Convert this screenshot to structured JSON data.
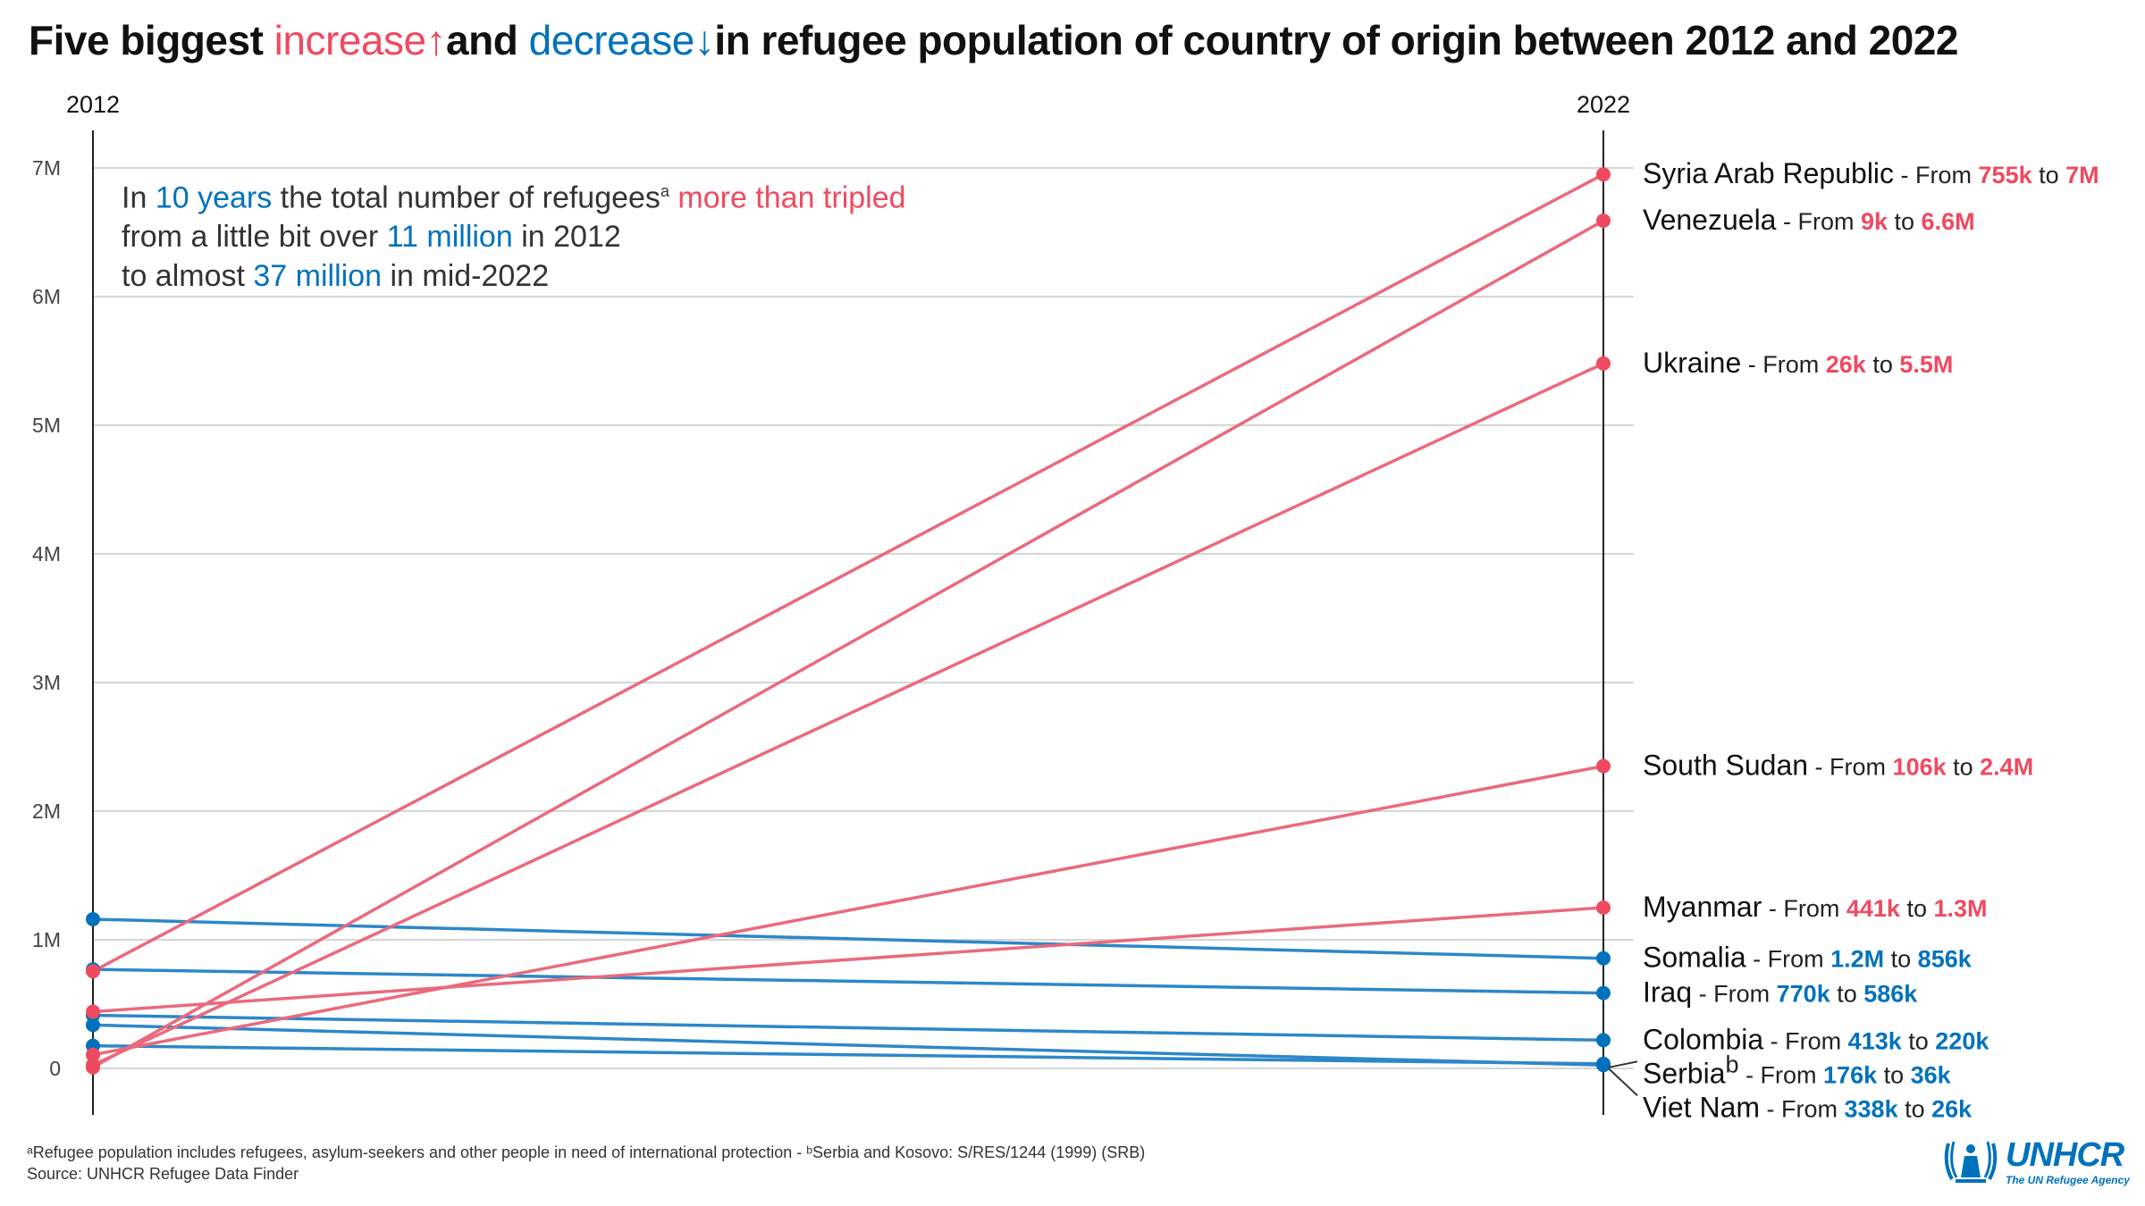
{
  "title": {
    "prefix": "Five biggest ",
    "increase": "increase",
    "increase_arrow": "↑",
    "middle": "and ",
    "decrease": "decrease",
    "decrease_arrow": "↓",
    "suffix": "in refugee population of country of origin between 2012 and 2022"
  },
  "annotation": {
    "l1_a": "In ",
    "l1_b": "10 years",
    "l1_c": " the total number of refugees",
    "l1_sup": "a",
    "l1_d": " more than tripled",
    "l2_a": "from a little bit over ",
    "l2_b": "11 million",
    "l2_c": " in 2012",
    "l3_a": "to almost ",
    "l3_b": "37 million",
    "l3_c": " in mid-2022"
  },
  "footnote": {
    "line1": "ᵃRefugee population includes refugees, asylum-seekers and other people in need of international protection - ᵇSerbia and Kosovo: S/RES/1244 (1999) (SRB)",
    "line2": "Source: UNHCR Refugee Data Finder"
  },
  "logo": {
    "word": "UNHCR",
    "tagline": "The UN Refugee Agency"
  },
  "colors": {
    "increase": "#ef4a60",
    "decrease": "#0072bc",
    "increase_line": "#ea6a7c",
    "decrease_line": "#2e87c8"
  },
  "chart_data": {
    "type": "line",
    "x": [
      "2012",
      "2022"
    ],
    "ylim": [
      0,
      7000000
    ],
    "yticks": [
      0,
      1000000,
      2000000,
      3000000,
      4000000,
      5000000,
      6000000,
      7000000
    ],
    "ytick_labels": [
      "0",
      "1M",
      "2M",
      "3M",
      "4M",
      "5M",
      "6M",
      "7M"
    ],
    "grid": true,
    "from_word": "From",
    "to_word": "to",
    "sep": " - ",
    "series": [
      {
        "name": "Syria Arab Republic",
        "group": "increase",
        "values": [
          755000,
          6950000
        ],
        "label_from": "755k",
        "label_to": "7M"
      },
      {
        "name": "Venezuela",
        "group": "increase",
        "values": [
          9000,
          6590000
        ],
        "label_from": "9k",
        "label_to": "6.6M"
      },
      {
        "name": "Ukraine",
        "group": "increase",
        "values": [
          26000,
          5480000
        ],
        "label_from": "26k",
        "label_to": "5.5M"
      },
      {
        "name": "South Sudan",
        "group": "increase",
        "values": [
          106000,
          2350000
        ],
        "label_from": "106k",
        "label_to": "2.4M"
      },
      {
        "name": "Myanmar",
        "group": "increase",
        "values": [
          441000,
          1250000
        ],
        "label_from": "441k",
        "label_to": "1.3M"
      },
      {
        "name": "Somalia",
        "group": "decrease",
        "values": [
          1160000,
          856000
        ],
        "label_from": "1.2M",
        "label_to": "856k"
      },
      {
        "name": "Iraq",
        "group": "decrease",
        "values": [
          770000,
          586000
        ],
        "label_from": "770k",
        "label_to": "586k"
      },
      {
        "name": "Colombia",
        "group": "decrease",
        "values": [
          413000,
          220000
        ],
        "label_from": "413k",
        "label_to": "220k"
      },
      {
        "name": "Serbia",
        "name_sup": "b",
        "group": "decrease",
        "values": [
          176000,
          36000
        ],
        "label_from": "176k",
        "label_to": "36k"
      },
      {
        "name": "Viet Nam",
        "group": "decrease",
        "values": [
          338000,
          26000
        ],
        "label_from": "338k",
        "label_to": "26k"
      }
    ]
  }
}
